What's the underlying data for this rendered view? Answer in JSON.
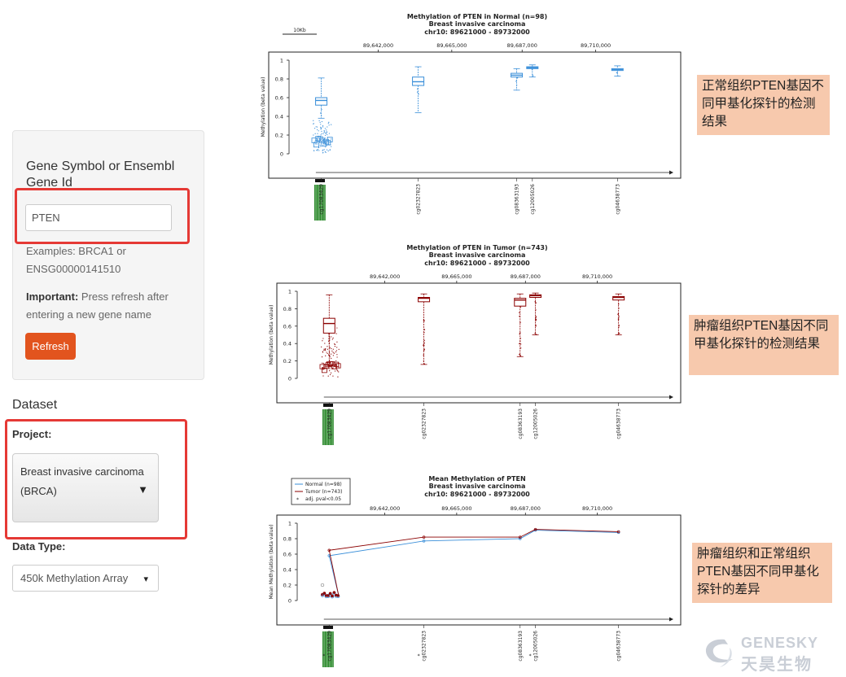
{
  "sidebar": {
    "gene_label": "Gene Symbol or Ensembl Gene Id",
    "gene_value": "PTEN",
    "examples_line1": "Examples: BRCA1 or",
    "examples_line2": "ENSG00000141510",
    "important_bold": "Important:",
    "important_rest": " Press refresh after",
    "important_line2": "entering a new gene name",
    "refresh_label": "Refresh",
    "dataset_heading": "Dataset",
    "project_label": "Project:",
    "project_value_line1": "Breast invasive carcinoma",
    "project_value_line2": "(BRCA)",
    "datatype_label": "Data Type:",
    "datatype_value": "450k Methylation Array"
  },
  "notes": [
    "正常组织PTEN基因不同甲基化探针的检测结果",
    "肿瘤组织PTEN基因不同甲基化探针的检测结果",
    "肿瘤组织和正常组织PTEN基因不同甲基化探针的差异"
  ],
  "chart_data": [
    {
      "type": "box",
      "title": "Methylation of PTEN in Normal (n=98)",
      "subtitle": "Breast invasive carcinoma",
      "region": "chr10: 89621000 - 89732000",
      "scale_label": "10Kb",
      "ylabel": "Methylation (beta value)",
      "ylim": [
        0,
        1
      ],
      "yticks": [
        "0",
        "0.2",
        "0.4",
        "0.6",
        "0.8",
        "1"
      ],
      "genomic_ticks": [
        "89,642,000",
        "89,665,000",
        "89,687,000",
        "89,710,000"
      ],
      "genomic_positions": [
        89642000,
        89665000,
        89687000,
        89710000
      ],
      "color": "#3a8fd9",
      "probes": [
        {
          "label": "cg17083429",
          "pos": 89624200,
          "q1": 0.52,
          "median": 0.57,
          "q3": 0.6,
          "lo": 0.38,
          "hi": 0.81
        },
        {
          "label": "cg02327823",
          "pos": 89654500,
          "q1": 0.73,
          "median": 0.77,
          "q3": 0.82,
          "lo": 0.44,
          "hi": 0.93
        },
        {
          "label": "cg08363193",
          "pos": 89685300,
          "q1": 0.82,
          "median": 0.84,
          "q3": 0.86,
          "lo": 0.68,
          "hi": 0.91
        },
        {
          "label": "cg12005026",
          "pos": 89690200,
          "q1": 0.91,
          "median": 0.92,
          "q3": 0.93,
          "lo": 0.82,
          "hi": 0.95
        },
        {
          "label": "cg04638773",
          "pos": 89716800,
          "q1": 0.89,
          "median": 0.9,
          "q3": 0.91,
          "lo": 0.83,
          "hi": 0.94
        }
      ]
    },
    {
      "type": "box",
      "title": "Methylation of PTEN in Tumor (n=743)",
      "subtitle": "Breast invasive carcinoma",
      "region": "chr10: 89621000 - 89732000",
      "ylabel": "Methylation (beta value)",
      "ylim": [
        0,
        1
      ],
      "yticks": [
        "0",
        "0.2",
        "0.4",
        "0.6",
        "0.8",
        "1"
      ],
      "genomic_ticks": [
        "89,642,000",
        "89,665,000",
        "89,687,000",
        "89,710,000"
      ],
      "genomic_positions": [
        89642000,
        89665000,
        89687000,
        89710000
      ],
      "color": "#8b0000",
      "probes": [
        {
          "label": "cg17083429",
          "pos": 89624200,
          "q1": 0.52,
          "median": 0.63,
          "q3": 0.69,
          "lo": 0.15,
          "hi": 0.96
        },
        {
          "label": "cg02327823",
          "pos": 89654500,
          "q1": 0.88,
          "median": 0.92,
          "q3": 0.93,
          "lo": 0.16,
          "hi": 0.97
        },
        {
          "label": "cg08363193",
          "pos": 89685300,
          "q1": 0.83,
          "median": 0.9,
          "q3": 0.92,
          "lo": 0.25,
          "hi": 0.97
        },
        {
          "label": "cg12005026",
          "pos": 89690200,
          "q1": 0.93,
          "median": 0.95,
          "q3": 0.96,
          "lo": 0.5,
          "hi": 0.98
        },
        {
          "label": "cg04638773",
          "pos": 89716800,
          "q1": 0.9,
          "median": 0.93,
          "q3": 0.94,
          "lo": 0.5,
          "hi": 0.97
        }
      ]
    },
    {
      "type": "line",
      "title": "Mean Methylation of PTEN",
      "subtitle": "Breast invasive carcinoma",
      "region": "chr10: 89621000 - 89732000",
      "ylabel": "Mean Methylation (beta value)",
      "ylim": [
        0,
        1
      ],
      "yticks": [
        "0",
        "0.2",
        "0.4",
        "0.6",
        "0.8",
        "1"
      ],
      "genomic_ticks": [
        "89,642,000",
        "89,665,000",
        "89,687,000",
        "89,710,000"
      ],
      "genomic_positions": [
        89642000,
        89665000,
        89687000,
        89710000
      ],
      "legend": [
        "Normal (n=98)",
        "Tumor (n=743)",
        "adj. pval<0.05"
      ],
      "probe_labels": [
        "cg17083429",
        "cg02327823",
        "cg08363193",
        "cg12005026",
        "cg04638773"
      ],
      "x": [
        89624200,
        89654500,
        89685300,
        89690200,
        89716800
      ],
      "series": [
        {
          "name": "Normal (n=98)",
          "color": "#3a8fd9",
          "values": [
            0.58,
            0.77,
            0.8,
            0.91,
            0.88
          ]
        },
        {
          "name": "Tumor (n=743)",
          "color": "#8b0000",
          "values": [
            0.65,
            0.82,
            0.82,
            0.92,
            0.89
          ]
        }
      ]
    }
  ],
  "brand": {
    "name_en": "GENESKY",
    "name_cn": "天昊生物"
  }
}
